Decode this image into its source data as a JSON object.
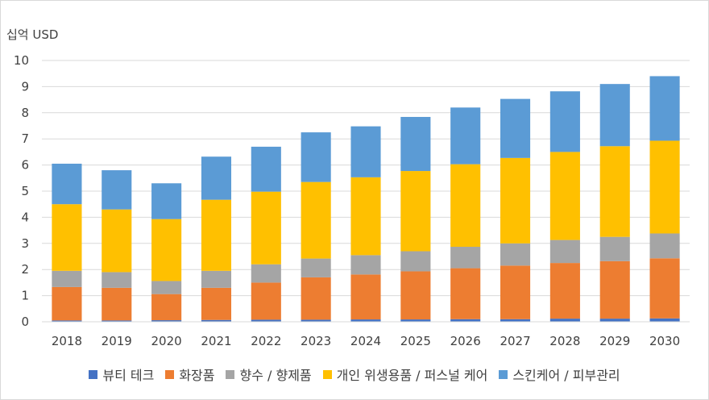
{
  "chart_data": {
    "type": "bar",
    "stacked": true,
    "ylabel": "십억 USD",
    "ylim": [
      0,
      10
    ],
    "yticks": [
      "0",
      "1",
      "2",
      "3",
      "4",
      "5",
      "6",
      "7",
      "8",
      "9",
      "10"
    ],
    "grid": true,
    "legend_position": "bottom",
    "categories": [
      "2018",
      "2019",
      "2020",
      "2021",
      "2022",
      "2023",
      "2024",
      "2025",
      "2026",
      "2027",
      "2028",
      "2029",
      "2030"
    ],
    "series": [
      {
        "name": "뷰티 테크",
        "color": "#4472C4",
        "values": [
          0.05,
          0.05,
          0.06,
          0.07,
          0.08,
          0.08,
          0.09,
          0.09,
          0.1,
          0.1,
          0.12,
          0.12,
          0.13
        ]
      },
      {
        "name": "화장품",
        "color": "#ED7D31",
        "values": [
          1.28,
          1.25,
          1.0,
          1.23,
          1.42,
          1.62,
          1.72,
          1.84,
          1.95,
          2.05,
          2.13,
          2.2,
          2.3
        ]
      },
      {
        "name": "향수 / 향제품",
        "color": "#A5A5A5",
        "values": [
          0.62,
          0.6,
          0.5,
          0.65,
          0.7,
          0.72,
          0.74,
          0.77,
          0.82,
          0.85,
          0.88,
          0.93,
          0.95
        ]
      },
      {
        "name": "개인 위생용품 / 퍼스널 케어",
        "color": "#FFC000",
        "values": [
          2.55,
          2.4,
          2.37,
          2.72,
          2.78,
          2.93,
          2.98,
          3.07,
          3.16,
          3.27,
          3.37,
          3.47,
          3.55
        ]
      },
      {
        "name": "스킨케어 / 피부관리",
        "color": "#5B9BD5",
        "values": [
          1.55,
          1.5,
          1.37,
          1.65,
          1.72,
          1.9,
          1.95,
          2.07,
          2.17,
          2.26,
          2.32,
          2.38,
          2.47
        ]
      }
    ]
  }
}
